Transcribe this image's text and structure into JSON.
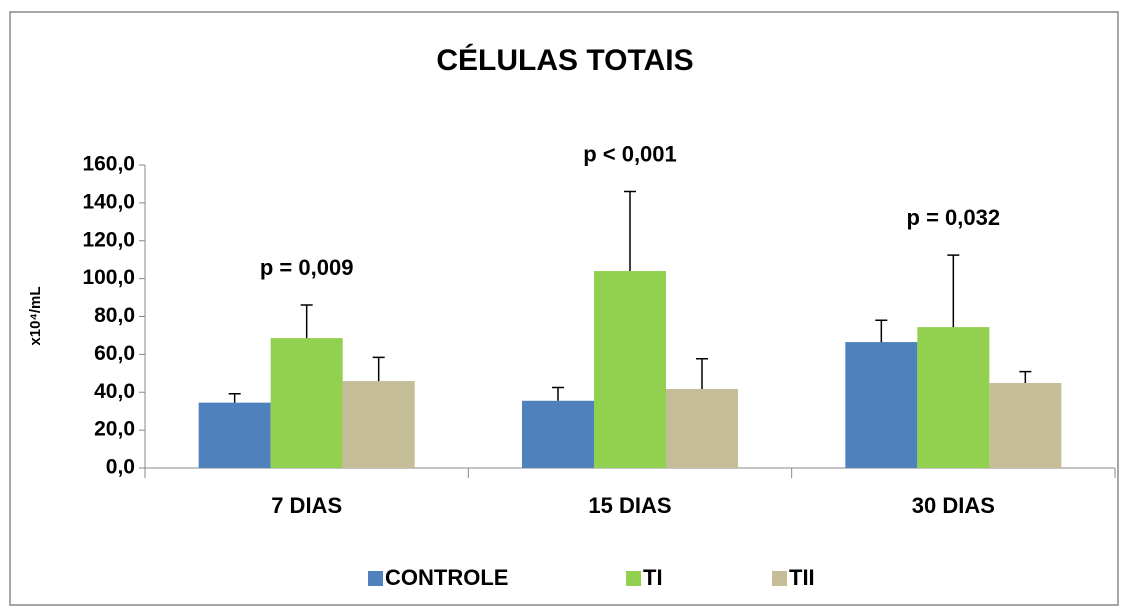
{
  "chart_data": {
    "type": "bar",
    "title": "CÉLULAS TOTAIS",
    "y_label": "x10⁴/mL",
    "categories": [
      "7 DIAS",
      "15 DIAS",
      "30 DIAS"
    ],
    "annotations": [
      "p = 0,009",
      "p < 0,001",
      "p = 0,032"
    ],
    "series": [
      {
        "name": "CONTROLE",
        "color": "#4f81bd",
        "values": [
          34.5,
          35.5,
          66.5
        ],
        "errors": [
          4.7,
          7,
          11.5
        ]
      },
      {
        "name": "TI",
        "color": "#92d050",
        "values": [
          68.6,
          104,
          74.4
        ],
        "errors": [
          17.5,
          42,
          38
        ]
      },
      {
        "name": "TII",
        "color": "#c4bd97",
        "values": [
          45.9,
          41.7,
          44.9
        ],
        "errors": [
          12.5,
          16,
          6
        ]
      }
    ],
    "ylim": [
      0,
      160
    ],
    "yticks": [
      {
        "value": 0,
        "label": "0,0"
      },
      {
        "value": 20,
        "label": "20,0"
      },
      {
        "value": 40,
        "label": "40,0"
      },
      {
        "value": 60,
        "label": "60,0"
      },
      {
        "value": 80,
        "label": "80,0"
      },
      {
        "value": 100,
        "label": "100,0"
      },
      {
        "value": 120,
        "label": "120,0"
      },
      {
        "value": 140,
        "label": "140,0"
      },
      {
        "value": 160,
        "label": "160,0"
      }
    ],
    "legend": "bottom"
  }
}
